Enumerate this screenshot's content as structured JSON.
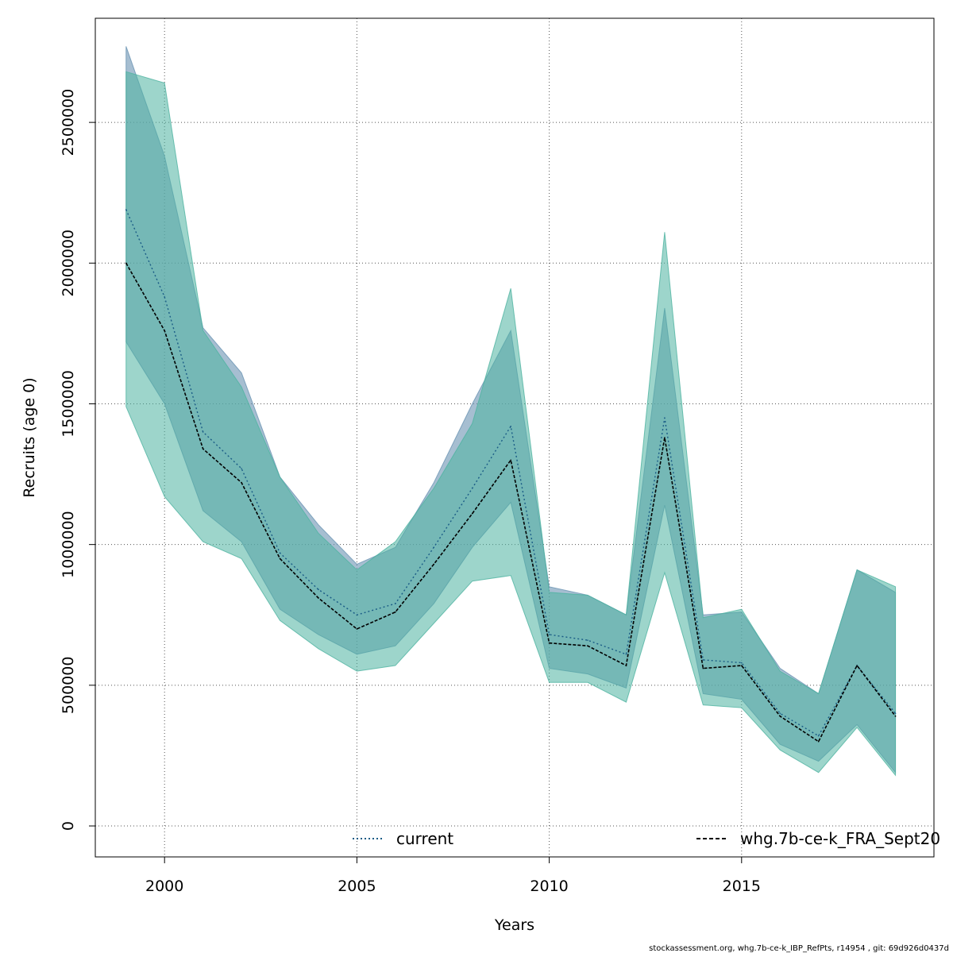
{
  "chart_data": {
    "type": "area",
    "xlabel": "Years",
    "ylabel": "Recruits (age 0)",
    "xlim": [
      1998.2,
      2020.0
    ],
    "ylim": [
      -110000,
      2870000
    ],
    "x_ticks": [
      2000,
      2005,
      2010,
      2015
    ],
    "y_ticks": [
      0,
      500000,
      1000000,
      1500000,
      2000000,
      2500000
    ],
    "grid": true,
    "legend_position": "bottom",
    "x": [
      1999,
      2000,
      2001,
      2002,
      2003,
      2004,
      2005,
      2006,
      2007,
      2008,
      2009,
      2010,
      2011,
      2012,
      2013,
      2014,
      2015,
      2016,
      2017,
      2018,
      2019
    ],
    "series": [
      {
        "name": "current",
        "color": "#1a5c86",
        "band_color": "#6a93b3",
        "line_style": "dotted",
        "values": [
          2190000,
          1880000,
          1400000,
          1270000,
          970000,
          840000,
          750000,
          790000,
          990000,
          1200000,
          1420000,
          680000,
          660000,
          610000,
          1450000,
          590000,
          580000,
          400000,
          320000,
          570000,
          400000
        ],
        "upper": [
          2770000,
          2380000,
          1770000,
          1610000,
          1240000,
          1070000,
          930000,
          990000,
          1220000,
          1500000,
          1760000,
          850000,
          820000,
          750000,
          1840000,
          750000,
          760000,
          560000,
          470000,
          910000,
          830000
        ],
        "lower": [
          1720000,
          1500000,
          1120000,
          1010000,
          770000,
          680000,
          610000,
          640000,
          790000,
          990000,
          1150000,
          560000,
          540000,
          490000,
          1140000,
          470000,
          450000,
          290000,
          230000,
          360000,
          190000
        ]
      },
      {
        "name": "whg.7b-ce-k_FRA_Sept20",
        "color": "#000000",
        "band_color": "#4db3a0",
        "line_style": "dashed",
        "values": [
          2000000,
          1760000,
          1340000,
          1220000,
          950000,
          810000,
          700000,
          760000,
          930000,
          1110000,
          1300000,
          650000,
          640000,
          570000,
          1380000,
          560000,
          570000,
          390000,
          300000,
          570000,
          390000
        ],
        "upper": [
          2680000,
          2640000,
          1760000,
          1560000,
          1240000,
          1040000,
          910000,
          1010000,
          1200000,
          1430000,
          1910000,
          830000,
          820000,
          750000,
          2110000,
          740000,
          770000,
          550000,
          470000,
          910000,
          850000
        ],
        "lower": [
          1490000,
          1170000,
          1010000,
          950000,
          730000,
          630000,
          550000,
          570000,
          720000,
          870000,
          890000,
          510000,
          510000,
          440000,
          900000,
          430000,
          420000,
          270000,
          190000,
          350000,
          180000
        ]
      }
    ]
  },
  "footer": {
    "text": "stockassessment.org, whg.7b-ce-k_IBP_RefPts, r14954 , git: 69d926d0437d"
  }
}
